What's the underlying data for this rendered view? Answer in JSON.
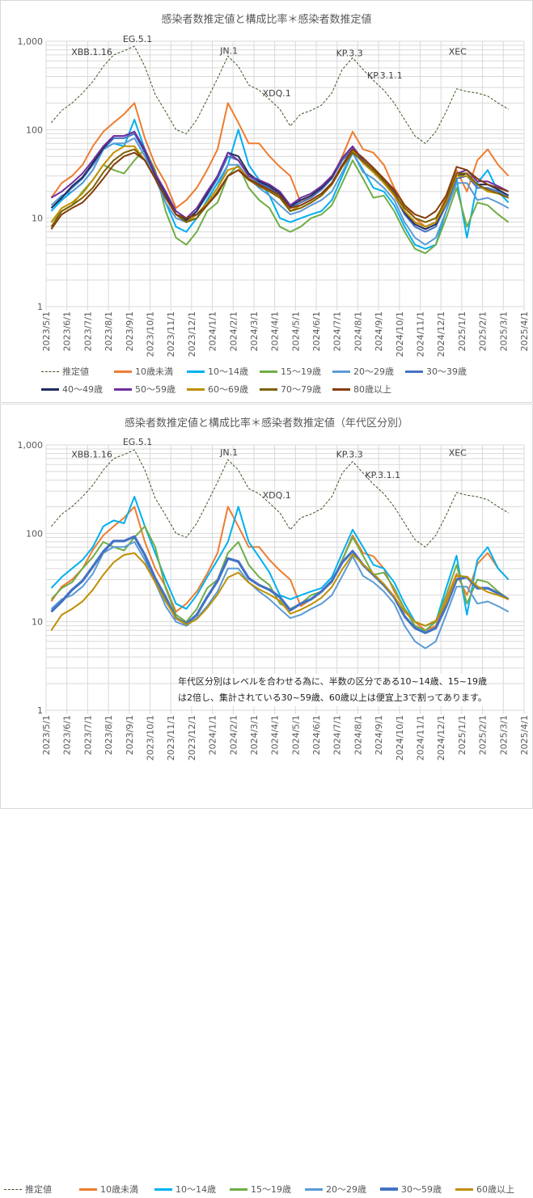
{
  "chart_data": [
    {
      "type": "line",
      "title": "感染者数推定値と構成比率＊感染者数推定値",
      "x_unit": "months since 2023/5/1",
      "x": [
        0.25,
        0.75,
        1.25,
        1.75,
        2.25,
        2.75,
        3.25,
        3.75,
        4.25,
        4.75,
        5.25,
        5.75,
        6.25,
        6.75,
        7.25,
        7.75,
        8.25,
        8.75,
        9.25,
        9.75,
        10.25,
        10.75,
        11.25,
        11.75,
        12.25,
        12.75,
        13.25,
        13.75,
        14.25,
        14.75,
        15.25,
        15.75,
        16.25,
        16.75,
        17.25,
        17.75,
        18.25,
        18.75,
        19.25,
        19.75,
        20.25,
        20.75,
        21.25,
        21.75,
        22.25
      ],
      "x_tick_labels": [
        "2023/5/1",
        "2023/6/1",
        "2023/7/1",
        "2023/8/1",
        "2023/9/1",
        "2023/10/1",
        "2023/11/1",
        "2023/12/1",
        "2024/1/1",
        "2024/2/1",
        "2024/3/1",
        "2024/4/1",
        "2024/5/1",
        "2024/6/1",
        "2024/7/1",
        "2024/8/1",
        "2024/9/1",
        "2024/10/1",
        "2024/11/1",
        "2024/12/1",
        "2025/1/1",
        "2025/2/1",
        "2025/3/1",
        "2025/4/1"
      ],
      "y_scale": "log",
      "ylim": [
        1,
        1000
      ],
      "y_ticks": [
        1,
        10,
        100,
        1000
      ],
      "y_tick_labels": [
        "1",
        "10",
        "100",
        "1,000"
      ],
      "grid": true,
      "legend_position": "bottom",
      "annotations": [
        {
          "text": "XBB.1.16",
          "x": 2.2,
          "y": 700
        },
        {
          "text": "EG.5.1",
          "x": 4.4,
          "y": 980
        },
        {
          "text": "JN.1",
          "x": 8.8,
          "y": 720
        },
        {
          "text": "XDQ.1",
          "x": 11.1,
          "y": 240
        },
        {
          "text": "KP.3.3",
          "x": 14.6,
          "y": 680
        },
        {
          "text": "KP.3.1.1",
          "x": 16.3,
          "y": 380
        },
        {
          "text": "XEC",
          "x": 19.8,
          "y": 710
        }
      ],
      "series": [
        {
          "name": "推定値",
          "color": "#375623",
          "dash": true,
          "values": [
            120,
            165,
            200,
            260,
            350,
            520,
            700,
            780,
            880,
            520,
            250,
            160,
            100,
            90,
            130,
            220,
            380,
            680,
            520,
            320,
            280,
            220,
            170,
            110,
            150,
            165,
            190,
            260,
            480,
            650,
            480,
            360,
            280,
            200,
            130,
            85,
            70,
            95,
            160,
            290,
            270,
            260,
            240,
            200,
            170
          ]
        },
        {
          "name": "10歳未満",
          "color": "#ED7D31",
          "values": [
            17,
            25,
            30,
            40,
            65,
            95,
            120,
            150,
            200,
            80,
            40,
            25,
            13,
            16,
            22,
            35,
            60,
            200,
            120,
            70,
            70,
            50,
            38,
            30,
            15,
            18,
            22,
            28,
            50,
            95,
            60,
            55,
            40,
            22,
            14,
            10,
            8,
            9,
            18,
            35,
            20,
            45,
            60,
            40,
            30
          ]
        },
        {
          "name": "10～14歳",
          "color": "#00B0F0",
          "values": [
            12,
            16,
            20,
            25,
            35,
            60,
            70,
            65,
            130,
            60,
            30,
            15,
            8,
            7,
            10,
            16,
            25,
            40,
            100,
            40,
            27,
            18,
            10,
            9,
            10,
            11,
            12,
            16,
            30,
            55,
            35,
            22,
            20,
            14,
            8,
            5,
            4.5,
            5,
            12,
            28,
            6,
            25,
            35,
            20,
            15
          ]
        },
        {
          "name": "15～19歳",
          "color": "#70AD47",
          "values": [
            9,
            12,
            14,
            20,
            27,
            40,
            35,
            32,
            45,
            60,
            35,
            12,
            6,
            5,
            7,
            12,
            15,
            30,
            40,
            22,
            16,
            13,
            8,
            7,
            8,
            10,
            11,
            14,
            25,
            45,
            28,
            17,
            18,
            12,
            7,
            4.5,
            4,
            5,
            10,
            22,
            8,
            15,
            14,
            11,
            9
          ]
        },
        {
          "name": "20～29歳",
          "color": "#5B9BD5",
          "values": [
            14,
            18,
            20,
            25,
            35,
            60,
            70,
            70,
            80,
            50,
            28,
            15,
            10,
            9,
            11,
            15,
            22,
            40,
            40,
            28,
            22,
            18,
            14,
            11,
            12,
            14,
            16,
            20,
            33,
            55,
            33,
            28,
            22,
            16,
            9,
            6,
            5,
            6,
            12,
            25,
            25,
            16,
            17,
            15,
            13
          ]
        },
        {
          "name": "30～39歳",
          "color": "#4472C4",
          "values": [
            13,
            17,
            22,
            28,
            40,
            60,
            80,
            80,
            90,
            55,
            30,
            18,
            11,
            9,
            12,
            18,
            28,
            50,
            45,
            30,
            25,
            22,
            18,
            13,
            15,
            17,
            21,
            28,
            45,
            60,
            42,
            33,
            25,
            18,
            11,
            8,
            7,
            8,
            14,
            28,
            30,
            22,
            22,
            20,
            17
          ]
        },
        {
          "name": "40～49歳",
          "color": "#1F2D5C",
          "values": [
            13,
            17,
            23,
            29,
            42,
            62,
            85,
            85,
            95,
            58,
            31,
            19,
            11,
            9.5,
            12,
            19,
            30,
            55,
            50,
            32,
            26,
            23,
            19,
            13.5,
            16,
            18,
            22,
            29,
            48,
            64,
            45,
            34,
            26,
            19,
            11.5,
            8.5,
            7.5,
            8.5,
            15,
            30,
            32,
            24,
            24,
            21,
            18
          ]
        },
        {
          "name": "50～59歳",
          "color": "#7030A0",
          "values": [
            17,
            20,
            25,
            32,
            45,
            65,
            85,
            85,
            95,
            60,
            32,
            20,
            12,
            10,
            13,
            20,
            30,
            55,
            45,
            30,
            27,
            24,
            20,
            14,
            17,
            19,
            23,
            30,
            48,
            65,
            45,
            35,
            27,
            20,
            12,
            9,
            8,
            9,
            16,
            32,
            35,
            26,
            26,
            23,
            20
          ]
        },
        {
          "name": "60～69歳",
          "color": "#BF9000",
          "values": [
            9,
            13,
            15,
            19,
            27,
            40,
            55,
            65,
            65,
            45,
            28,
            17,
            11,
            9,
            11,
            15,
            22,
            35,
            38,
            28,
            23,
            20,
            17,
            12,
            14,
            16,
            19,
            25,
            40,
            58,
            42,
            33,
            25,
            18,
            12,
            9,
            8,
            9,
            15,
            30,
            30,
            24,
            20,
            19,
            17
          ]
        },
        {
          "name": "70～79歳",
          "color": "#7F6000",
          "values": [
            8,
            12,
            14,
            17,
            22,
            33,
            45,
            55,
            60,
            45,
            28,
            17,
            11,
            9,
            10,
            14,
            20,
            30,
            35,
            27,
            23,
            20,
            17,
            12,
            13,
            15,
            18,
            24,
            38,
            55,
            44,
            35,
            27,
            19,
            13,
            10,
            9,
            10,
            16,
            32,
            32,
            24,
            21,
            19,
            17
          ]
        },
        {
          "name": "80歳以上",
          "color": "#843C0C",
          "values": [
            7.5,
            11,
            13,
            15,
            20,
            28,
            40,
            50,
            55,
            45,
            28,
            17,
            11,
            10,
            11,
            14,
            19,
            30,
            35,
            28,
            24,
            21,
            18,
            13,
            14,
            16,
            19,
            25,
            40,
            60,
            48,
            37,
            28,
            21,
            14,
            11,
            10,
            12,
            18,
            38,
            35,
            28,
            24,
            22,
            20
          ]
        }
      ]
    },
    {
      "type": "line",
      "title": "感染者数推定値と構成比率＊感染者数推定値（年代区分別）",
      "x_unit": "months since 2023/5/1",
      "x": [
        0.25,
        0.75,
        1.25,
        1.75,
        2.25,
        2.75,
        3.25,
        3.75,
        4.25,
        4.75,
        5.25,
        5.75,
        6.25,
        6.75,
        7.25,
        7.75,
        8.25,
        8.75,
        9.25,
        9.75,
        10.25,
        10.75,
        11.25,
        11.75,
        12.25,
        12.75,
        13.25,
        13.75,
        14.25,
        14.75,
        15.25,
        15.75,
        16.25,
        16.75,
        17.25,
        17.75,
        18.25,
        18.75,
        19.25,
        19.75,
        20.25,
        20.75,
        21.25,
        21.75,
        22.25
      ],
      "x_tick_labels": [
        "2023/5/1",
        "2023/6/1",
        "2023/7/1",
        "2023/8/1",
        "2023/9/1",
        "2023/10/1",
        "2023/11/1",
        "2023/12/1",
        "2024/1/1",
        "2024/2/1",
        "2024/3/1",
        "2024/4/1",
        "2024/5/1",
        "2024/6/1",
        "2024/7/1",
        "2024/8/1",
        "2024/9/1",
        "2024/10/1",
        "2024/11/1",
        "2024/12/1",
        "2025/1/1",
        "2025/2/1",
        "2025/3/1",
        "2025/4/1"
      ],
      "y_scale": "log",
      "ylim": [
        1,
        1000
      ],
      "y_ticks": [
        1,
        10,
        100,
        1000
      ],
      "y_tick_labels": [
        "1",
        "10",
        "100",
        "1,000"
      ],
      "grid": true,
      "legend_position": "bottom",
      "note": [
        "年代区分別はレベルを合わせる為に、半数の区分である10~14歳、15~19歳",
        "は2倍し、集計されている30~59歳、60歳以上は便宜上3で割ってあります。"
      ],
      "annotations": [
        {
          "text": "XBB.1.16",
          "x": 2.2,
          "y": 720
        },
        {
          "text": "EG.5.1",
          "x": 4.4,
          "y": 1000
        },
        {
          "text": "JN.1",
          "x": 8.8,
          "y": 760
        },
        {
          "text": "XDQ.1",
          "x": 11.1,
          "y": 250
        },
        {
          "text": "KP.3.3",
          "x": 14.6,
          "y": 720
        },
        {
          "text": "KP.3.1.1",
          "x": 16.2,
          "y": 420
        },
        {
          "text": "XEC",
          "x": 19.8,
          "y": 750
        }
      ],
      "series": [
        {
          "name": "推定値",
          "color": "#375623",
          "dash": true,
          "values": [
            120,
            165,
            200,
            260,
            350,
            520,
            700,
            780,
            880,
            520,
            250,
            160,
            100,
            90,
            130,
            220,
            380,
            680,
            520,
            320,
            280,
            220,
            170,
            110,
            150,
            165,
            190,
            260,
            480,
            650,
            480,
            360,
            280,
            200,
            130,
            85,
            70,
            95,
            160,
            290,
            270,
            260,
            240,
            200,
            170
          ]
        },
        {
          "name": "10歳未満",
          "color": "#ED7D31",
          "values": [
            17,
            25,
            30,
            40,
            65,
            95,
            120,
            150,
            200,
            80,
            40,
            25,
            13,
            16,
            22,
            35,
            60,
            200,
            120,
            70,
            70,
            50,
            38,
            30,
            15,
            18,
            22,
            28,
            50,
            95,
            60,
            55,
            40,
            22,
            14,
            10,
            8,
            9,
            18,
            35,
            20,
            45,
            60,
            40,
            30
          ]
        },
        {
          "name": "10～14歳",
          "color": "#00B0F0",
          "values": [
            24,
            32,
            40,
            50,
            70,
            120,
            140,
            130,
            260,
            120,
            60,
            30,
            16,
            14,
            20,
            32,
            50,
            80,
            200,
            80,
            54,
            36,
            20,
            18,
            20,
            22,
            24,
            32,
            60,
            110,
            70,
            44,
            40,
            28,
            16,
            10,
            9,
            10,
            24,
            56,
            12,
            50,
            70,
            40,
            30
          ]
        },
        {
          "name": "15～19歳",
          "color": "#70AD47",
          "values": [
            18,
            24,
            28,
            40,
            54,
            80,
            70,
            64,
            90,
            120,
            70,
            24,
            12,
            10,
            14,
            24,
            30,
            60,
            80,
            44,
            32,
            26,
            16,
            14,
            16,
            20,
            22,
            28,
            50,
            90,
            56,
            34,
            36,
            24,
            14,
            9,
            8,
            10,
            20,
            44,
            16,
            30,
            28,
            22,
            18
          ]
        },
        {
          "name": "20～29歳",
          "color": "#5B9BD5",
          "values": [
            14,
            18,
            20,
            25,
            35,
            60,
            70,
            70,
            80,
            50,
            28,
            15,
            10,
            9,
            11,
            15,
            22,
            40,
            40,
            28,
            22,
            18,
            14,
            11,
            12,
            14,
            16,
            20,
            33,
            55,
            33,
            28,
            22,
            16,
            9,
            6,
            5,
            6,
            12,
            25,
            25,
            16,
            17,
            15,
            13
          ]
        },
        {
          "name": "30～59歳",
          "color": "#4472C4",
          "bold": true,
          "values": [
            13,
            17,
            23,
            29,
            42,
            62,
            82,
            82,
            92,
            57,
            31,
            19,
            11,
            9.5,
            12,
            19,
            29,
            52,
            48,
            31,
            26,
            23,
            19,
            13.5,
            16,
            18,
            22,
            29,
            47,
            63,
            44,
            34,
            26,
            19,
            11.5,
            8.5,
            7.5,
            8.5,
            15,
            30,
            32,
            24,
            24,
            21,
            18
          ]
        },
        {
          "name": "60歳以上",
          "color": "#BF9000",
          "values": [
            8,
            12,
            14,
            17,
            23,
            34,
            47,
            57,
            60,
            45,
            28,
            17,
            11,
            9.3,
            10.7,
            14.3,
            20.3,
            31.7,
            36,
            27.7,
            23.3,
            20.3,
            17.3,
            12.3,
            13.7,
            15.7,
            18.7,
            24.7,
            39.3,
            57.7,
            44.7,
            35,
            26.7,
            19.3,
            13,
            10,
            9,
            10.3,
            16.3,
            33.3,
            32.3,
            25.3,
            21.7,
            20,
            18
          ]
        }
      ]
    }
  ]
}
